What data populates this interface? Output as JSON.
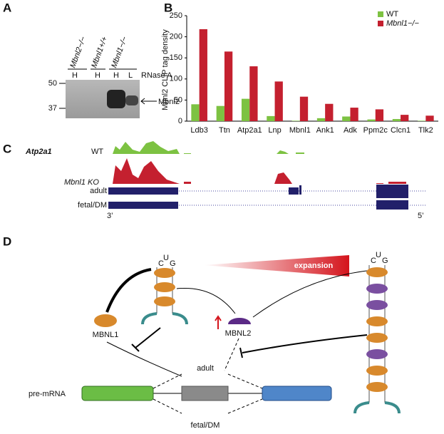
{
  "panel_labels": [
    "A",
    "B",
    "C",
    "D"
  ],
  "panel_a": {
    "genotypes": [
      "Mbnl2−/−",
      "Mbnl1+/+",
      "Mbnl1−/−"
    ],
    "lanes": [
      "H",
      "H",
      "H",
      "L"
    ],
    "treatment": "RNase A",
    "markers": [
      "50",
      "37"
    ],
    "band_label": "Mbnl2"
  },
  "chart_data": {
    "type": "bar",
    "ylabel": "Mbnl2 CLIP tag density",
    "categories": [
      "Ldb3",
      "Ttn",
      "Atp2a1",
      "Lnp",
      "Mbnl1",
      "Ank1",
      "Adk",
      "Ppm2c",
      "Clcn1",
      "Tlk2"
    ],
    "series": [
      {
        "name": "WT",
        "color": "#7dc242",
        "values": [
          40,
          36,
          53,
          12,
          1,
          7,
          11,
          4,
          5,
          1
        ]
      },
      {
        "name": "Mbnl1−/−",
        "color": "#c4202f",
        "values": [
          218,
          165,
          130,
          94,
          58,
          41,
          32,
          28,
          15,
          13
        ]
      }
    ],
    "ylim": [
      0,
      250
    ],
    "yticks": [
      0,
      50,
      100,
      150,
      200,
      250
    ],
    "legend": "upper right"
  },
  "panel_c": {
    "gene": "Atp2a1",
    "tracks": [
      "WT",
      "Mbnl1 KO"
    ],
    "isoforms": [
      "adult",
      "fetal/DM"
    ],
    "ends": [
      "3’",
      "5’"
    ]
  },
  "panel_d": {
    "wedge": "expansion",
    "proteins": [
      "MBNL1",
      "MBNL2"
    ],
    "transcript": "pre-mRNA",
    "isoforms": [
      "adult",
      "fetal/DM"
    ],
    "loop": [
      "C",
      "U",
      "G"
    ],
    "right_loop": [
      "C",
      "U",
      "G"
    ]
  }
}
